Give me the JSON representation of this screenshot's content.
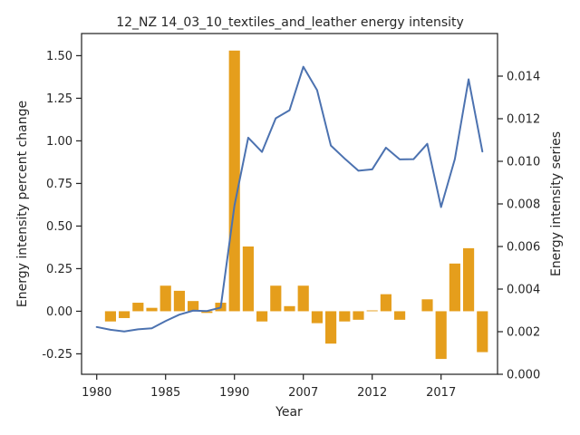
{
  "chart_data": {
    "type": "bar+line",
    "title": "12_NZ 14_03_10_textiles_and_leather energy intensity",
    "xlabel": "Year",
    "ylabel_left": "Energy intensity percent change",
    "ylabel_right": "Energy intensity series",
    "x_tick_labels": [
      "1980",
      "1985",
      "1990",
      "2007",
      "2012",
      "2017"
    ],
    "left_ylim": [
      -0.37,
      1.63
    ],
    "left_ticks": [
      "-0.25",
      "0.00",
      "0.25",
      "0.50",
      "0.75",
      "1.00",
      "1.25",
      "1.50"
    ],
    "right_ylim": [
      0.0,
      0.016
    ],
    "right_ticks": [
      "0.000",
      "0.002",
      "0.004",
      "0.006",
      "0.008",
      "0.010",
      "0.012",
      "0.014"
    ],
    "categories": [
      "1980",
      "1981",
      "1982",
      "1983",
      "1984",
      "1985",
      "1986",
      "1987",
      "1988",
      "1989",
      "1990",
      "1991",
      "1992",
      "2005",
      "2006",
      "2007",
      "2008",
      "2009",
      "2010",
      "2011",
      "2012",
      "2013",
      "2014",
      "2015",
      "2016",
      "2017",
      "2018",
      "2019",
      "2020"
    ],
    "bar_series": {
      "name": "Energy intensity percent change",
      "color": "#E59E1C",
      "values": [
        null,
        -0.06,
        -0.04,
        0.05,
        0.02,
        0.15,
        0.12,
        0.06,
        -0.01,
        0.05,
        1.53,
        0.38,
        -0.06,
        0.15,
        0.03,
        0.15,
        -0.07,
        -0.19,
        -0.06,
        -0.05,
        0.005,
        0.1,
        -0.05,
        null,
        0.07,
        -0.28,
        0.28,
        0.37,
        -0.24
      ]
    },
    "line_series": {
      "name": "Energy intensity series",
      "color": "#4C72B0",
      "values": [
        0.00222,
        0.00209,
        0.00201,
        0.00211,
        0.00216,
        0.0025,
        0.0028,
        0.00299,
        0.00297,
        0.00313,
        0.00792,
        0.01111,
        0.01044,
        0.01202,
        0.0124,
        0.01444,
        0.01334,
        0.01074,
        0.01013,
        0.00956,
        0.00962,
        0.01064,
        0.01009,
        0.0101,
        0.01082,
        0.00785,
        0.0101,
        0.01385,
        0.01046
      ]
    }
  }
}
